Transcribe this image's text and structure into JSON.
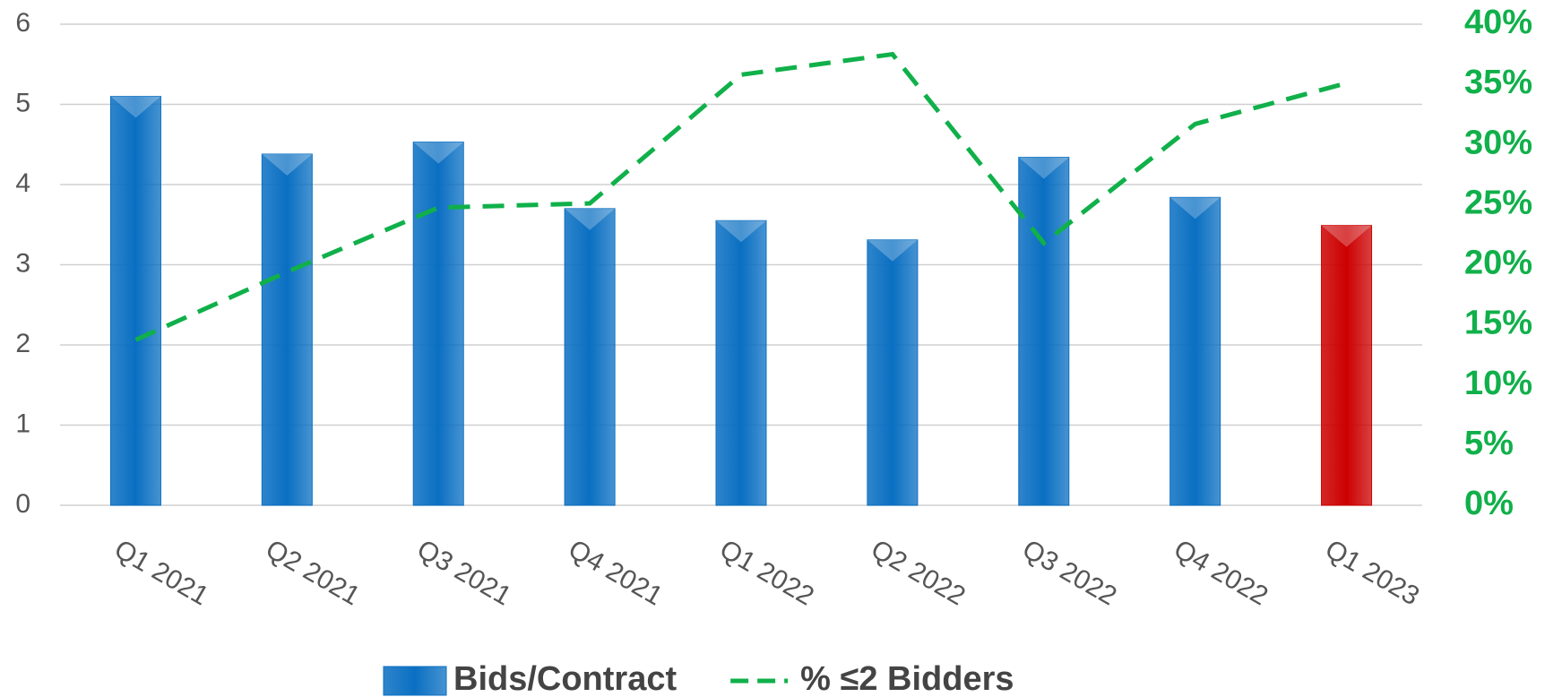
{
  "chart_data": {
    "type": "bar",
    "categories": [
      "Q1 2021",
      "Q2 2021",
      "Q3 2021",
      "Q4 2021",
      "Q1 2022",
      "Q2 2022",
      "Q3 2022",
      "Q4 2022",
      "Q1 2023"
    ],
    "series": [
      {
        "name": "Bids/Contract",
        "type": "bar",
        "color": "#0a6fc2",
        "colors": [
          "#0a6fc2",
          "#0a6fc2",
          "#0a6fc2",
          "#0a6fc2",
          "#0a6fc2",
          "#0a6fc2",
          "#0a6fc2",
          "#0a6fc2",
          "#cc0000"
        ],
        "values": [
          5.1,
          4.38,
          4.53,
          3.7,
          3.55,
          3.31,
          4.34,
          3.84,
          3.49
        ]
      },
      {
        "name": "% ≤2 Bidders",
        "type": "line",
        "axis": "y2",
        "color": "#10b04a",
        "dashed": true,
        "values": [
          13.75,
          19.4,
          24.75,
          25.1,
          35.8,
          37.5,
          21.8,
          31.7,
          35.1
        ]
      }
    ],
    "ylim": [
      0,
      6
    ],
    "yticks": [
      0,
      1,
      2,
      3,
      4,
      5,
      6
    ],
    "y2lim": [
      0,
      40
    ],
    "y2ticks": [
      {
        "value": 0,
        "label": "0%"
      },
      {
        "value": 5,
        "label": "5%"
      },
      {
        "value": 10,
        "label": "10%"
      },
      {
        "value": 15,
        "label": "15%"
      },
      {
        "value": 20,
        "label": "20%"
      },
      {
        "value": 25,
        "label": "25%"
      },
      {
        "value": 30,
        "label": "30%"
      },
      {
        "value": 35,
        "label": "35%"
      },
      {
        "value": 40,
        "label": "40%"
      }
    ],
    "grid": true,
    "legend": "bottom"
  }
}
